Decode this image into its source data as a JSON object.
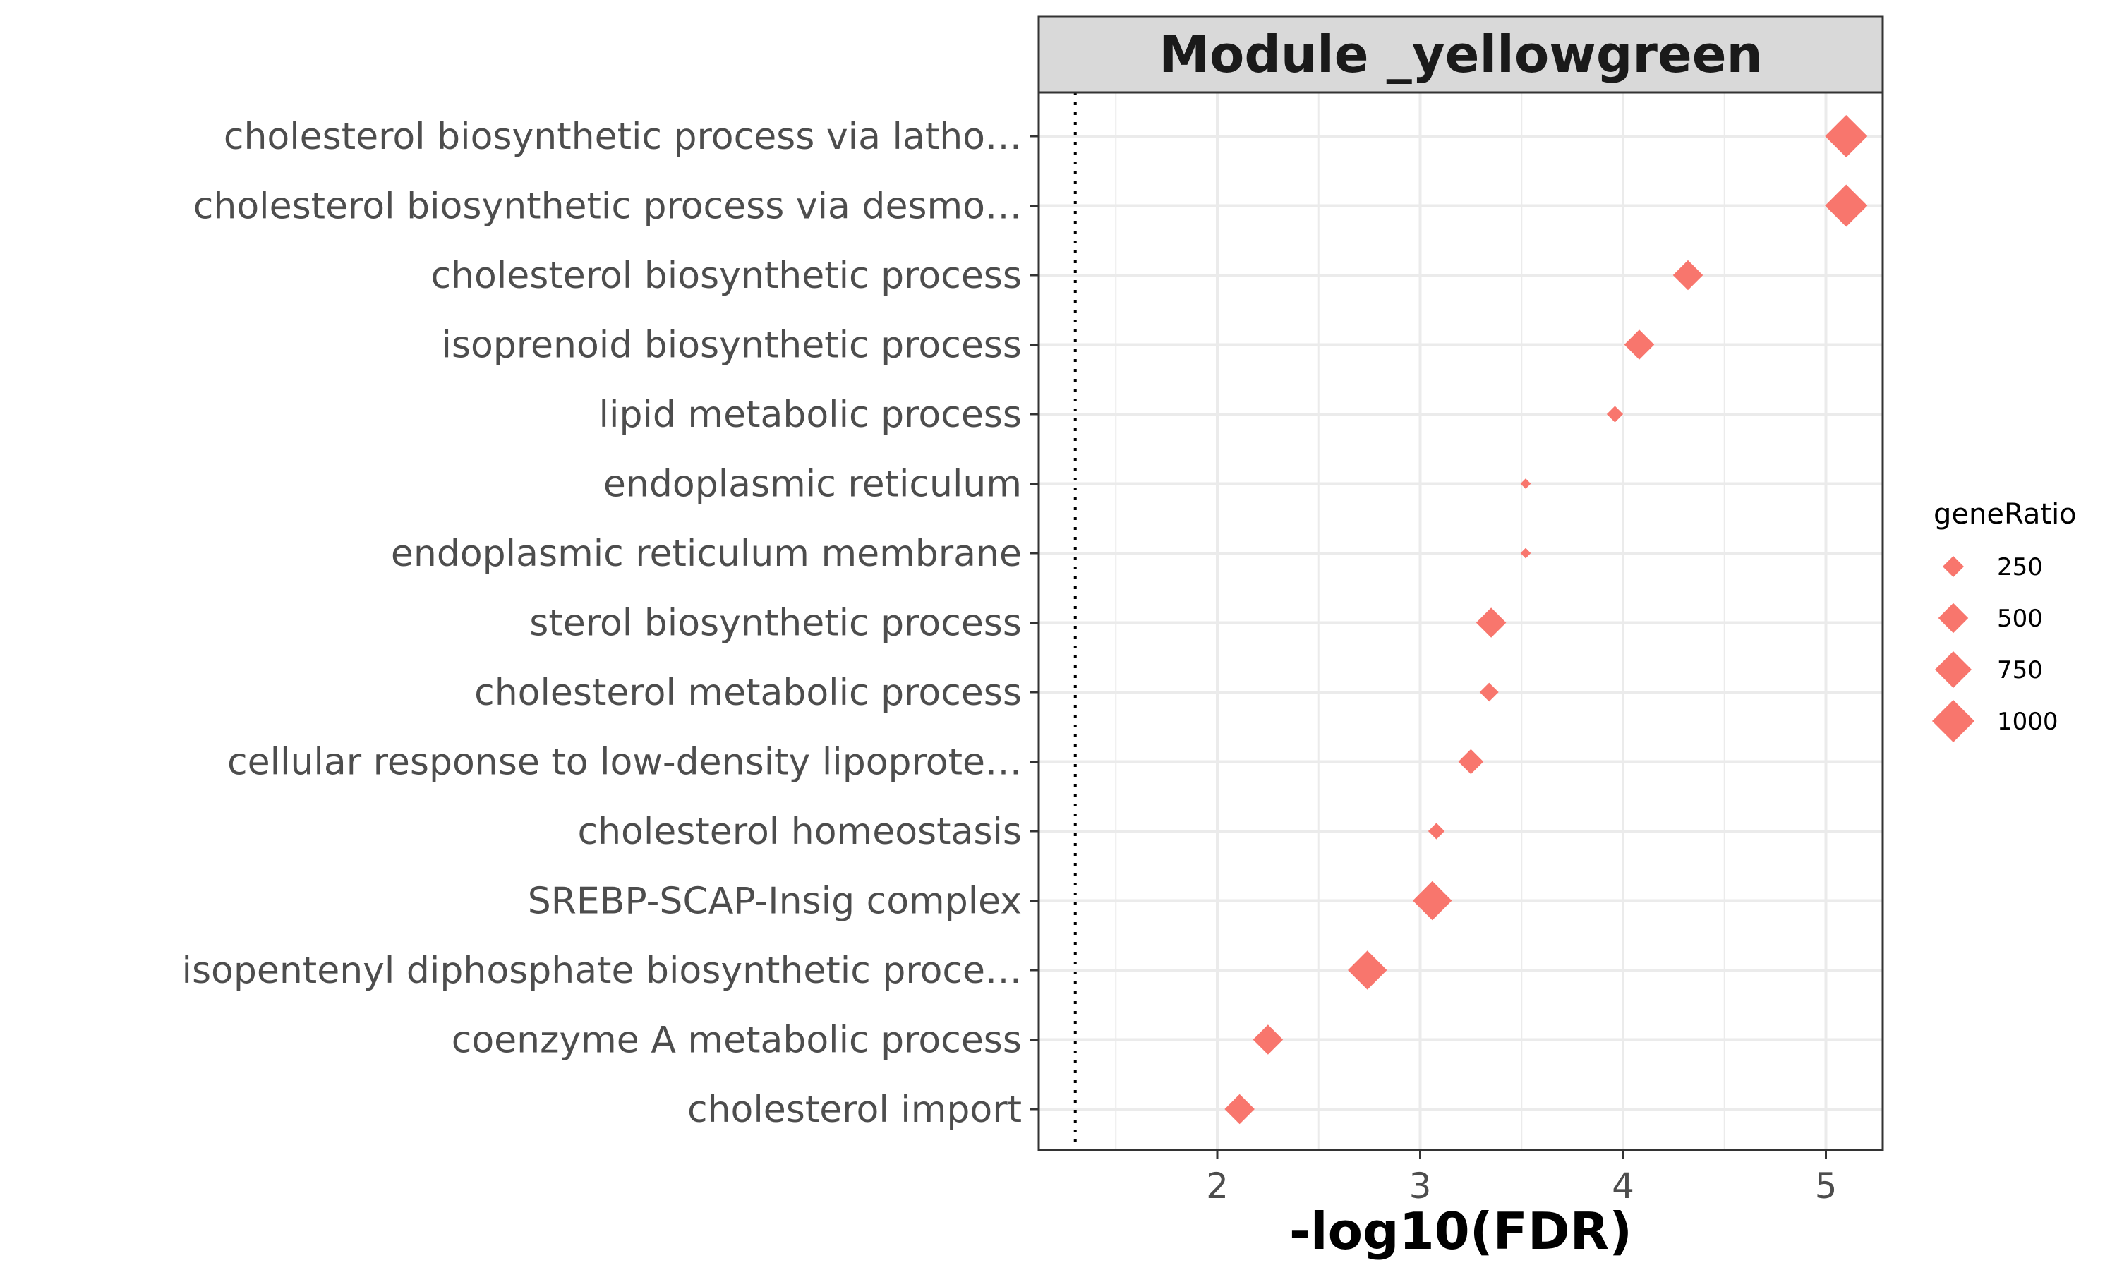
{
  "chart_data": {
    "type": "scatter",
    "title": "Module _yellowgreen",
    "xlabel": "-log10(FDR)",
    "ylabel": "",
    "xlim": [
      1.12,
      5.28
    ],
    "x_ticks": [
      2,
      3,
      4,
      5
    ],
    "x_tick_labels": [
      "2",
      "3",
      "4",
      "5"
    ],
    "threshold_line": 1.3,
    "marker": "diamond",
    "colors": {
      "point": "#F8766D",
      "strip_fill": "#D9D9D9",
      "grid": "#EBEBEB",
      "panel_border": "#333333",
      "threshold": "#000000"
    },
    "categories": [
      "cholesterol biosynthetic process via latho…",
      "cholesterol biosynthetic process via desmo…",
      "cholesterol biosynthetic process",
      "isoprenoid biosynthetic process",
      "lipid metabolic process",
      "endoplasmic reticulum",
      "endoplasmic reticulum membrane",
      "sterol biosynthetic process",
      "cholesterol metabolic process",
      "cellular response to low-density lipoprote…",
      "cholesterol homeostasis",
      "SREBP-SCAP-Insig complex",
      "isopentenyl diphosphate biosynthetic proce…",
      "coenzyme A metabolic process",
      "cholesterol import"
    ],
    "series": [
      {
        "x": [
          5.1,
          5.1,
          4.32,
          4.08,
          3.96,
          3.52,
          3.52,
          3.35,
          3.34,
          3.25,
          3.08,
          3.06,
          2.74,
          2.25,
          2.11
        ],
        "size": [
          1000,
          1000,
          500,
          500,
          150,
          60,
          60,
          500,
          200,
          350,
          150,
          850,
          850,
          500,
          500
        ]
      }
    ],
    "legend": {
      "title": "geneRatio",
      "position": "right",
      "values": [
        250,
        500,
        750,
        1000
      ],
      "labels": [
        "250",
        "500",
        "750",
        "1000"
      ]
    },
    "grid": true
  }
}
